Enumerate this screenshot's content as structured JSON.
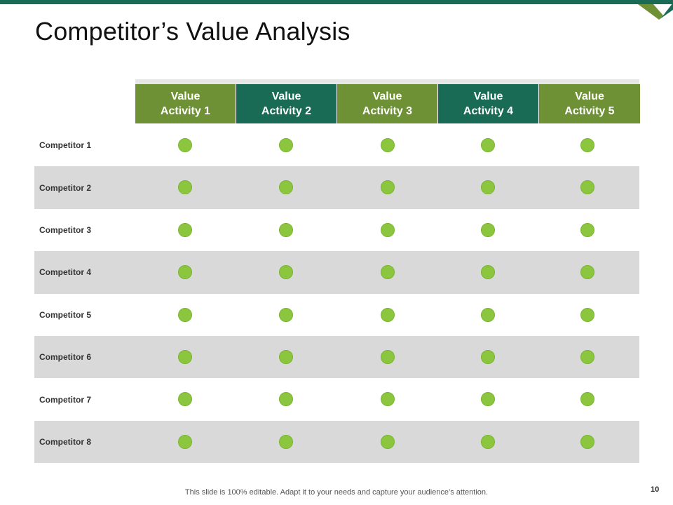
{
  "slide": {
    "title": "Competitor’s Value Analysis",
    "footer": "This slide is 100% editable. Adapt it to your needs and capture your audience’s attention.",
    "page_number": "10"
  },
  "colors": {
    "accent_teal": "#1a6b55",
    "accent_olive": "#6e9136",
    "dot_green": "#8cc63f",
    "row_shade": "#d9d9d9"
  },
  "table": {
    "columns": [
      {
        "line1": "Value",
        "line2": "Activity 1",
        "color": "olive"
      },
      {
        "line1": "Value",
        "line2": "Activity 2",
        "color": "teal"
      },
      {
        "line1": "Value",
        "line2": "Activity 3",
        "color": "olive"
      },
      {
        "line1": "Value",
        "line2": "Activity 4",
        "color": "teal"
      },
      {
        "line1": "Value",
        "line2": "Activity 5",
        "color": "olive"
      }
    ],
    "rows": [
      {
        "label": "Competitor 1",
        "marks": [
          true,
          true,
          true,
          true,
          true
        ]
      },
      {
        "label": "Competitor 2",
        "marks": [
          true,
          true,
          true,
          true,
          true
        ]
      },
      {
        "label": "Competitor 3",
        "marks": [
          true,
          true,
          true,
          true,
          true
        ]
      },
      {
        "label": "Competitor 4",
        "marks": [
          true,
          true,
          true,
          true,
          true
        ]
      },
      {
        "label": "Competitor 5",
        "marks": [
          true,
          true,
          true,
          true,
          true
        ]
      },
      {
        "label": "Competitor 6",
        "marks": [
          true,
          true,
          true,
          true,
          true
        ]
      },
      {
        "label": "Competitor 7",
        "marks": [
          true,
          true,
          true,
          true,
          true
        ]
      },
      {
        "label": "Competitor 8",
        "marks": [
          true,
          true,
          true,
          true,
          true
        ]
      }
    ]
  }
}
